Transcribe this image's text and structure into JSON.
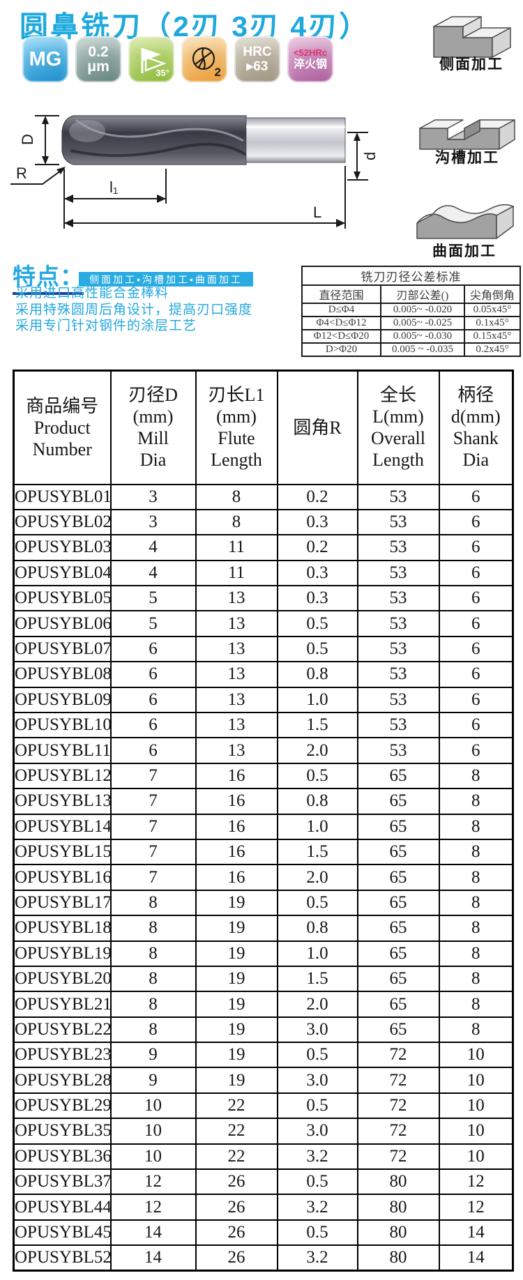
{
  "title": "圆鼻铣刀（2刃 3刃  4刃）",
  "badges": {
    "material_grade": "MG",
    "roughness_value": "0.2",
    "roughness_unit": "μm",
    "helix_angle": "35°",
    "flute_count": "2",
    "hardness_line1": "HRC",
    "hardness_line2": "▸63",
    "steel_line1": "<52HRc",
    "steel_line2": "淬火钢",
    "colors": {
      "mg": "#1b8ccb",
      "um": "#64837e",
      "angle": "#8cb93a",
      "flute": "#e99b36",
      "hrc": "#9c937e",
      "steel": "#aa5c9b"
    }
  },
  "diagram_labels": {
    "D": "D",
    "R": "R",
    "l1": "l₁",
    "L": "L",
    "d": "d"
  },
  "machining": [
    {
      "label": "侧面加工"
    },
    {
      "label": "沟槽加工"
    },
    {
      "label": "曲面加工"
    }
  ],
  "features": {
    "heading": "特点：",
    "bar_text": "侧面加工•沟槽加工•曲面加工",
    "lines": [
      "采用进口高性能合金棒料",
      "采用特殊圆周后角设计，提高刃口强度",
      "采用专门针对钢件的涂层工艺"
    ],
    "accent_color": "#29abe2"
  },
  "tolerance_table": {
    "title": "铣刀刃径公差标准",
    "headers": [
      "直径范围",
      "刃部公差()",
      "尖角倒角"
    ],
    "rows": [
      [
        "D≤Φ4",
        "0.005~ -0.020",
        "0.05x45°"
      ],
      [
        "Φ4<D≤Φ12",
        "0.005~ -0.025",
        "0.1x45°"
      ],
      [
        "Φ12<D≤Φ20",
        "0.005~ -0.030",
        "0.15x45°"
      ],
      [
        "D>Φ20",
        "0.005 ~ -0.035",
        "0.2x45°"
      ]
    ]
  },
  "product_table": {
    "headers": [
      {
        "lines": [
          "商品编号",
          "Product",
          "Number"
        ]
      },
      {
        "lines": [
          "刃径D",
          "(mm)",
          "Mill",
          "Dia"
        ]
      },
      {
        "lines": [
          "刃长L1",
          "(mm)",
          "Flute",
          "Length"
        ]
      },
      {
        "lines": [
          "圆角R"
        ]
      },
      {
        "lines": [
          "全长",
          "L(mm)",
          "Overall",
          "Length"
        ]
      },
      {
        "lines": [
          "柄径",
          "d(mm)",
          "Shank",
          "Dia"
        ]
      }
    ],
    "rows": [
      [
        "OPUSYBL01",
        "3",
        "8",
        "0.2",
        "53",
        "6"
      ],
      [
        "OPUSYBL02",
        "3",
        "8",
        "0.3",
        "53",
        "6"
      ],
      [
        "OPUSYBL03",
        "4",
        "11",
        "0.2",
        "53",
        "6"
      ],
      [
        "OPUSYBL04",
        "4",
        "11",
        "0.3",
        "53",
        "6"
      ],
      [
        "OPUSYBL05",
        "5",
        "13",
        "0.3",
        "53",
        "6"
      ],
      [
        "OPUSYBL06",
        "5",
        "13",
        "0.5",
        "53",
        "6"
      ],
      [
        "OPUSYBL07",
        "6",
        "13",
        "0.5",
        "53",
        "6"
      ],
      [
        "OPUSYBL08",
        "6",
        "13",
        "0.8",
        "53",
        "6"
      ],
      [
        "OPUSYBL09",
        "6",
        "13",
        "1.0",
        "53",
        "6"
      ],
      [
        "OPUSYBL10",
        "6",
        "13",
        "1.5",
        "53",
        "6"
      ],
      [
        "OPUSYBL11",
        "6",
        "13",
        "2.0",
        "53",
        "6"
      ],
      [
        "OPUSYBL12",
        "7",
        "16",
        "0.5",
        "65",
        "8"
      ],
      [
        "OPUSYBL13",
        "7",
        "16",
        "0.8",
        "65",
        "8"
      ],
      [
        "OPUSYBL14",
        "7",
        "16",
        "1.0",
        "65",
        "8"
      ],
      [
        "OPUSYBL15",
        "7",
        "16",
        "1.5",
        "65",
        "8"
      ],
      [
        "OPUSYBL16",
        "7",
        "16",
        "2.0",
        "65",
        "8"
      ],
      [
        "OPUSYBL17",
        "8",
        "19",
        "0.5",
        "65",
        "8"
      ],
      [
        "OPUSYBL18",
        "8",
        "19",
        "0.8",
        "65",
        "8"
      ],
      [
        "OPUSYBL19",
        "8",
        "19",
        "1.0",
        "65",
        "8"
      ],
      [
        "OPUSYBL20",
        "8",
        "19",
        "1.5",
        "65",
        "8"
      ],
      [
        "OPUSYBL21",
        "8",
        "19",
        "2.0",
        "65",
        "8"
      ],
      [
        "OPUSYBL22",
        "8",
        "19",
        "3.0",
        "65",
        "8"
      ],
      [
        "OPUSYBL23",
        "9",
        "19",
        "0.5",
        "72",
        "10"
      ],
      [
        "OPUSYBL28",
        "9",
        "19",
        "3.0",
        "72",
        "10"
      ],
      [
        "OPUSYBL29",
        "10",
        "22",
        "0.5",
        "72",
        "10"
      ],
      [
        "OPUSYBL35",
        "10",
        "22",
        "3.0",
        "72",
        "10"
      ],
      [
        "OPUSYBL36",
        "10",
        "22",
        "3.2",
        "72",
        "10"
      ],
      [
        "OPUSYBL37",
        "12",
        "26",
        "0.5",
        "80",
        "12"
      ],
      [
        "OPUSYBL44",
        "12",
        "26",
        "3.2",
        "80",
        "12"
      ],
      [
        "OPUSYBL45",
        "14",
        "26",
        "0.5",
        "80",
        "14"
      ],
      [
        "OPUSYBL52",
        "14",
        "26",
        "3.2",
        "80",
        "14"
      ]
    ]
  }
}
